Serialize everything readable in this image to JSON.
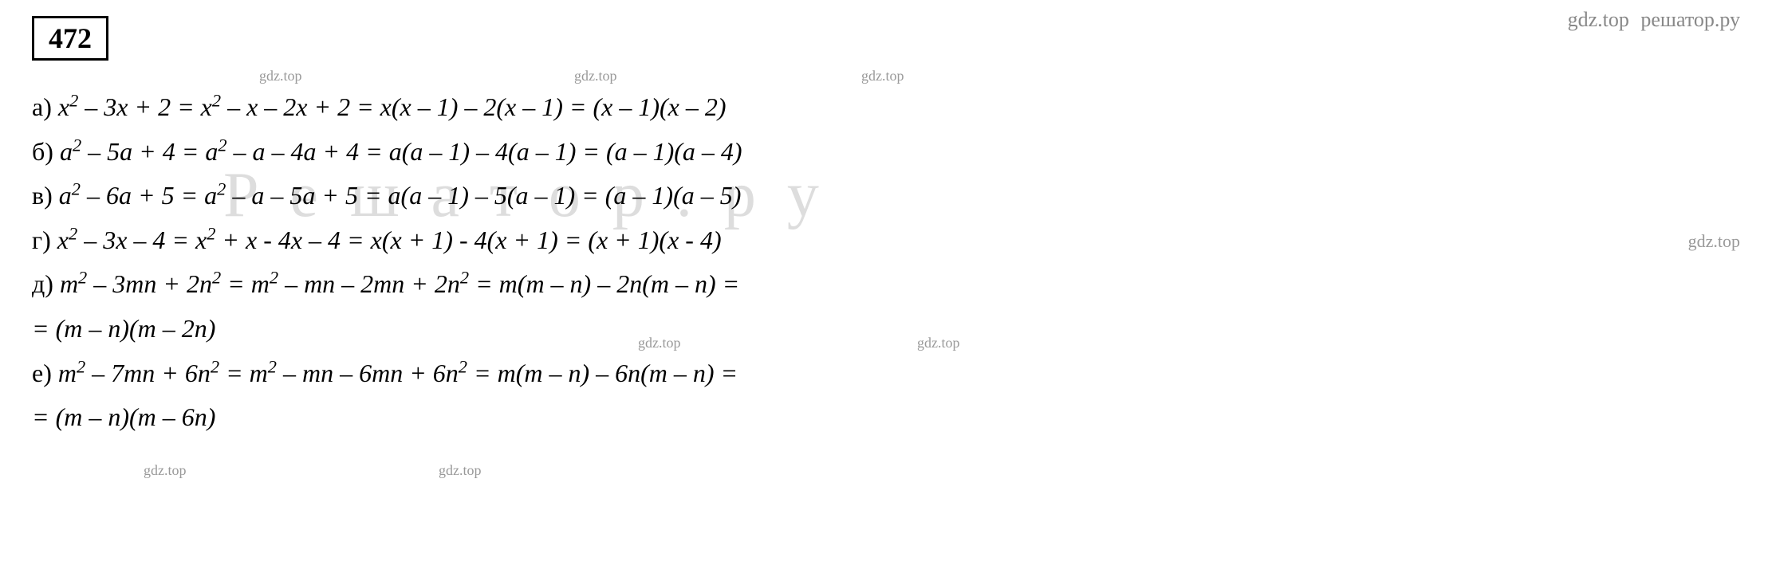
{
  "problem_number": "472",
  "watermarks": {
    "top_gdz": "gdz.top",
    "top_reshator": "решатор.ру",
    "small1": "gdz.top",
    "small2": "gdz.top",
    "small3": "gdz.top",
    "small4": "gdz.top",
    "small5": "gdz.top",
    "small6": "gdz.top",
    "small7": "gdz.top",
    "small8": "gdz.top",
    "large": "Решатор.ру"
  },
  "lines": {
    "a": {
      "label": "а) ",
      "expr": "x² – 3x + 2 = x² – x – 2x + 2 = x(x – 1) – 2(x – 1) = (x – 1)(x – 2)"
    },
    "b": {
      "label": "б) ",
      "expr": "a² – 5a + 4 = a² – a – 4a + 4 = a(a – 1) – 4(a – 1) = (a – 1)(a – 4)"
    },
    "v": {
      "label": "в) ",
      "expr": "a² – 6a + 5 = a² – a – 5a + 5 = a(a – 1) – 5(a – 1) = (a – 1)(a – 5)"
    },
    "g": {
      "label": "г) ",
      "expr": "x² – 3x – 4 = x² + x - 4x – 4 = x(x + 1) - 4(x + 1) = (x + 1)(x - 4)"
    },
    "d1": {
      "label": "д) ",
      "expr": "m² – 3mn + 2n² = m² – mn – 2mn + 2n² = m(m – n) – 2n(m – n) ="
    },
    "d2": {
      "label": "",
      "expr": "= (m – n)(m – 2n)"
    },
    "e1": {
      "label": "е) ",
      "expr": "m² – 7mn + 6n² = m² – mn – 6mn + 6n² = m(m – n) – 6n(m – n) ="
    },
    "e2": {
      "label": "",
      "expr": "= (m – n)(m – 6n)"
    }
  },
  "colors": {
    "text": "#000000",
    "bg": "#ffffff",
    "wm_small": "#999999",
    "wm_large": "#dddddd"
  },
  "typography": {
    "body_font_size": 32,
    "problem_font_size": 36,
    "wm_small_font_size": 18,
    "wm_large_font_size": 80
  }
}
